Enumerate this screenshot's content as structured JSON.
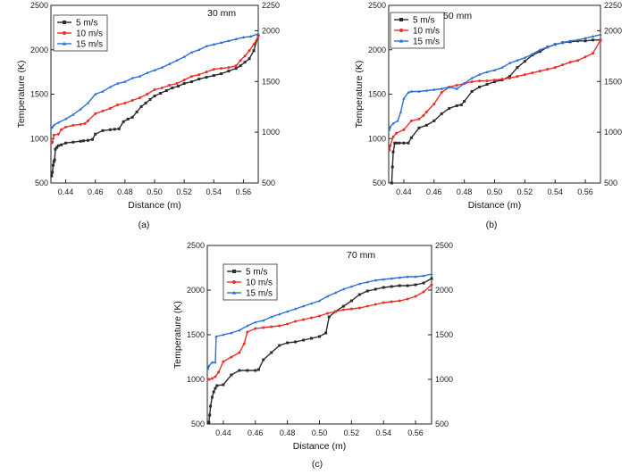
{
  "chart_data": [
    {
      "id": "a",
      "type": "line",
      "caption": "(a)",
      "annotation": "30 mm",
      "xlabel": "Distance (m)",
      "ylabel": "Temperature (K)",
      "xlim": [
        0.43,
        0.57
      ],
      "ylim": [
        500,
        2500
      ],
      "xticks": [
        "0.44",
        "0.46",
        "0.48",
        "0.50",
        "0.52",
        "0.54",
        "0.56"
      ],
      "yticks": [
        "500",
        "1000",
        "1500",
        "2000",
        "2500"
      ],
      "ylim_right": [
        500,
        2250
      ],
      "yticks_right": [
        "500",
        "1000",
        "1500",
        "2000",
        "2250"
      ],
      "legend": [
        "5 m/s",
        "10 m/s",
        "15 m/s"
      ],
      "series": [
        {
          "name": "5 m/s",
          "color": "#2b2b2b",
          "marker": "square",
          "x": [
            0.4305,
            0.431,
            0.4315,
            0.432,
            0.4325,
            0.433,
            0.434,
            0.435,
            0.437,
            0.44,
            0.445,
            0.45,
            0.452,
            0.455,
            0.458,
            0.46,
            0.465,
            0.47,
            0.473,
            0.476,
            0.479,
            0.482,
            0.485,
            0.488,
            0.491,
            0.494,
            0.497,
            0.5,
            0.504,
            0.508,
            0.512,
            0.516,
            0.52,
            0.525,
            0.53,
            0.535,
            0.54,
            0.545,
            0.55,
            0.555,
            0.558,
            0.561,
            0.564,
            0.567,
            0.57
          ],
          "values": [
            580,
            620,
            700,
            740,
            760,
            880,
            900,
            920,
            930,
            950,
            960,
            970,
            975,
            980,
            990,
            1050,
            1090,
            1100,
            1105,
            1110,
            1190,
            1220,
            1240,
            1300,
            1360,
            1400,
            1440,
            1480,
            1510,
            1540,
            1570,
            1590,
            1620,
            1640,
            1670,
            1690,
            1710,
            1730,
            1760,
            1790,
            1820,
            1860,
            1900,
            1990,
            2160
          ]
        },
        {
          "name": "10 m/s",
          "color": "#e8312a",
          "marker": "circle",
          "x": [
            0.4305,
            0.431,
            0.432,
            0.435,
            0.437,
            0.44,
            0.445,
            0.45,
            0.453,
            0.455,
            0.46,
            0.465,
            0.47,
            0.475,
            0.48,
            0.485,
            0.49,
            0.495,
            0.5,
            0.505,
            0.51,
            0.515,
            0.52,
            0.525,
            0.53,
            0.535,
            0.54,
            0.545,
            0.55,
            0.555,
            0.558,
            0.561,
            0.564,
            0.567,
            0.57
          ],
          "values": [
            950,
            960,
            1040,
            1050,
            1100,
            1130,
            1150,
            1160,
            1170,
            1200,
            1280,
            1310,
            1340,
            1380,
            1400,
            1430,
            1460,
            1500,
            1550,
            1570,
            1600,
            1620,
            1660,
            1700,
            1720,
            1750,
            1780,
            1790,
            1800,
            1820,
            1880,
            1930,
            1990,
            2060,
            2150
          ]
        },
        {
          "name": "15 m/s",
          "color": "#2d6fd6",
          "marker": "triangle",
          "x": [
            0.4305,
            0.431,
            0.432,
            0.435,
            0.44,
            0.445,
            0.45,
            0.455,
            0.46,
            0.465,
            0.47,
            0.475,
            0.48,
            0.485,
            0.49,
            0.495,
            0.5,
            0.505,
            0.51,
            0.515,
            0.52,
            0.525,
            0.53,
            0.535,
            0.54,
            0.545,
            0.55,
            0.555,
            0.56,
            0.565,
            0.57
          ],
          "values": [
            1120,
            1130,
            1150,
            1180,
            1220,
            1270,
            1330,
            1400,
            1500,
            1530,
            1580,
            1620,
            1640,
            1680,
            1700,
            1740,
            1770,
            1800,
            1840,
            1880,
            1920,
            1970,
            2000,
            2040,
            2060,
            2080,
            2100,
            2120,
            2140,
            2150,
            2180
          ]
        }
      ]
    },
    {
      "id": "b",
      "type": "line",
      "caption": "(b)",
      "annotation": "50 mm",
      "xlabel": "Distance (m)",
      "ylabel": "Temperature (K)",
      "xlim": [
        0.43,
        0.57
      ],
      "ylim": [
        500,
        2500
      ],
      "xticks": [
        "0.44",
        "0.46",
        "0.48",
        "0.50",
        "0.52",
        "0.54",
        "0.56"
      ],
      "yticks": [
        "500",
        "1000",
        "1500",
        "2000",
        "2500"
      ],
      "ylim_right": [
        500,
        2250
      ],
      "yticks_right": [
        "500",
        "1000",
        "1500",
        "2000",
        "2250"
      ],
      "legend": [
        "5 m/s",
        "10 m/s",
        "15 m/s"
      ],
      "series": [
        {
          "name": "5 m/s",
          "color": "#2b2b2b",
          "marker": "square",
          "x": [
            0.432,
            0.4325,
            0.433,
            0.434,
            0.435,
            0.437,
            0.44,
            0.443,
            0.445,
            0.45,
            0.455,
            0.46,
            0.465,
            0.47,
            0.475,
            0.478,
            0.48,
            0.485,
            0.49,
            0.495,
            0.5,
            0.505,
            0.51,
            0.515,
            0.52,
            0.525,
            0.53,
            0.535,
            0.54,
            0.545,
            0.55,
            0.555,
            0.56,
            0.565,
            0.57
          ],
          "values": [
            500,
            680,
            850,
            950,
            950,
            950,
            950,
            950,
            1010,
            1120,
            1150,
            1200,
            1280,
            1340,
            1370,
            1380,
            1420,
            1530,
            1580,
            1610,
            1640,
            1660,
            1700,
            1800,
            1870,
            1940,
            1980,
            2030,
            2060,
            2080,
            2090,
            2100,
            2100,
            2110,
            2110
          ]
        },
        {
          "name": "10 m/s",
          "color": "#e8312a",
          "marker": "circle",
          "x": [
            0.4305,
            0.431,
            0.433,
            0.435,
            0.44,
            0.445,
            0.45,
            0.453,
            0.455,
            0.46,
            0.465,
            0.47,
            0.475,
            0.48,
            0.485,
            0.49,
            0.495,
            0.5,
            0.505,
            0.51,
            0.515,
            0.52,
            0.525,
            0.53,
            0.535,
            0.54,
            0.545,
            0.55,
            0.555,
            0.56,
            0.565,
            0.57
          ],
          "values": [
            870,
            920,
            1020,
            1060,
            1100,
            1200,
            1220,
            1260,
            1300,
            1390,
            1520,
            1580,
            1600,
            1620,
            1640,
            1650,
            1650,
            1660,
            1670,
            1680,
            1700,
            1720,
            1740,
            1760,
            1780,
            1800,
            1830,
            1860,
            1880,
            1920,
            1960,
            2110
          ]
        },
        {
          "name": "15 m/s",
          "color": "#2d6fd6",
          "marker": "triangle",
          "x": [
            0.4305,
            0.431,
            0.433,
            0.436,
            0.438,
            0.44,
            0.443,
            0.445,
            0.45,
            0.455,
            0.46,
            0.465,
            0.47,
            0.475,
            0.48,
            0.485,
            0.49,
            0.495,
            0.5,
            0.505,
            0.51,
            0.515,
            0.52,
            0.525,
            0.53,
            0.535,
            0.54,
            0.545,
            0.55,
            0.555,
            0.56,
            0.565,
            0.57
          ],
          "values": [
            1100,
            1130,
            1170,
            1200,
            1300,
            1450,
            1520,
            1530,
            1530,
            1540,
            1550,
            1560,
            1580,
            1560,
            1620,
            1680,
            1720,
            1750,
            1770,
            1800,
            1850,
            1880,
            1910,
            1950,
            2000,
            2030,
            2060,
            2080,
            2100,
            2110,
            2130,
            2150,
            2170
          ]
        }
      ]
    },
    {
      "id": "c",
      "type": "line",
      "caption": "(c)",
      "annotation": "70 mm",
      "xlabel": "Distance (m)",
      "ylabel": "Temperature (K)",
      "xlim": [
        0.43,
        0.57
      ],
      "ylim": [
        500,
        2500
      ],
      "xticks": [
        "0.44",
        "0.46",
        "0.48",
        "0.50",
        "0.52",
        "0.54",
        "0.56"
      ],
      "yticks": [
        "500",
        "1000",
        "1500",
        "2000",
        "2500"
      ],
      "ylim_right": [
        500,
        2500
      ],
      "yticks_right": [
        "500",
        "1000",
        "1500",
        "2000",
        "2500"
      ],
      "legend": [
        "5 m/s",
        "10 m/s",
        "15 m/s"
      ],
      "series": [
        {
          "name": "5 m/s",
          "color": "#2b2b2b",
          "marker": "square",
          "x": [
            0.431,
            0.4315,
            0.432,
            0.433,
            0.434,
            0.435,
            0.436,
            0.44,
            0.445,
            0.45,
            0.455,
            0.46,
            0.462,
            0.465,
            0.47,
            0.475,
            0.48,
            0.485,
            0.49,
            0.495,
            0.5,
            0.504,
            0.506,
            0.51,
            0.515,
            0.52,
            0.525,
            0.53,
            0.535,
            0.54,
            0.545,
            0.55,
            0.555,
            0.56,
            0.565,
            0.57
          ],
          "values": [
            520,
            600,
            700,
            800,
            860,
            900,
            930,
            940,
            1050,
            1100,
            1100,
            1100,
            1110,
            1220,
            1300,
            1380,
            1410,
            1420,
            1440,
            1460,
            1480,
            1520,
            1700,
            1760,
            1820,
            1880,
            1950,
            1990,
            2010,
            2030,
            2040,
            2050,
            2050,
            2060,
            2080,
            2130
          ]
        },
        {
          "name": "10 m/s",
          "color": "#e8312a",
          "marker": "circle",
          "x": [
            0.4305,
            0.431,
            0.433,
            0.435,
            0.437,
            0.44,
            0.445,
            0.45,
            0.453,
            0.455,
            0.46,
            0.465,
            0.47,
            0.475,
            0.48,
            0.485,
            0.49,
            0.495,
            0.5,
            0.505,
            0.51,
            0.515,
            0.52,
            0.525,
            0.53,
            0.535,
            0.54,
            0.545,
            0.55,
            0.555,
            0.56,
            0.565,
            0.57
          ],
          "values": [
            1000,
            1000,
            1010,
            1030,
            1080,
            1200,
            1250,
            1300,
            1400,
            1530,
            1570,
            1580,
            1590,
            1600,
            1620,
            1650,
            1670,
            1690,
            1710,
            1740,
            1760,
            1780,
            1790,
            1800,
            1820,
            1840,
            1860,
            1870,
            1880,
            1900,
            1930,
            1980,
            2060
          ]
        },
        {
          "name": "15 m/s",
          "color": "#2d6fd6",
          "marker": "triangle",
          "x": [
            0.4305,
            0.431,
            0.433,
            0.435,
            0.4355,
            0.44,
            0.445,
            0.45,
            0.455,
            0.46,
            0.465,
            0.47,
            0.475,
            0.48,
            0.485,
            0.49,
            0.495,
            0.5,
            0.505,
            0.51,
            0.515,
            0.52,
            0.525,
            0.53,
            0.535,
            0.54,
            0.545,
            0.55,
            0.555,
            0.56,
            0.565,
            0.57
          ],
          "values": [
            1120,
            1150,
            1190,
            1190,
            1480,
            1500,
            1520,
            1550,
            1600,
            1640,
            1660,
            1700,
            1730,
            1760,
            1790,
            1820,
            1850,
            1880,
            1930,
            1970,
            2010,
            2040,
            2070,
            2090,
            2110,
            2120,
            2130,
            2140,
            2150,
            2150,
            2160,
            2180
          ]
        }
      ]
    }
  ]
}
